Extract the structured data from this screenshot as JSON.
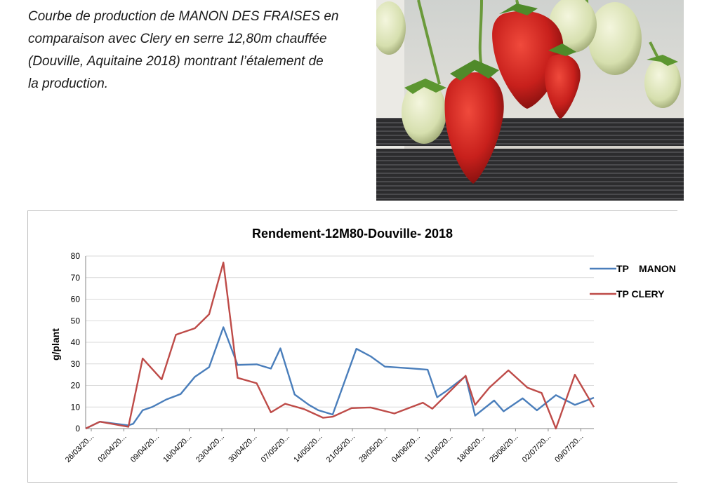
{
  "caption": {
    "line1": "Courbe de production de MANON DES FRAISES en",
    "line2": "comparaison avec Clery en serre 12,80m chauffée",
    "line3": "(Douville, Aquitaine 2018) montrant l’étalement de",
    "line4": "la production."
  },
  "photo": {
    "subject": "strawberries-hanging-from-gutter"
  },
  "colors": {
    "manon": "#4a7ebb",
    "clery": "#be4b48",
    "grid": "#d9d9d9",
    "axis": "#868686"
  },
  "chart_data": {
    "type": "line",
    "title": "Rendement-12M80-Douville- 2018",
    "ylabel": "g/plant",
    "xlabel": "",
    "ylim": [
      0,
      80
    ],
    "yticks": [
      0,
      10,
      20,
      30,
      40,
      50,
      60,
      70,
      80
    ],
    "grid": true,
    "legend_position": "right",
    "x_start": "26/03/2018",
    "x_end": "11/07/2018",
    "tick_labels": [
      "26/03/20...",
      "02/04/20...",
      "09/04/20...",
      "16/04/20...",
      "23/04/20...",
      "30/04/20...",
      "07/05/20...",
      "14/05/20...",
      "21/05/20...",
      "28/05/20...",
      "04/06/20...",
      "11/06/20...",
      "18/06/20...",
      "25/06/20...",
      "02/07/20...",
      "09/07/20..."
    ],
    "series": [
      {
        "name": "TP MANON",
        "legend_parts": [
          "TP",
          "MANON"
        ],
        "color": "#4a7ebb",
        "points": [
          [
            "26/03/2018",
            0
          ],
          [
            "29/03/2018",
            3.2
          ],
          [
            "04/04/2018",
            1.5
          ],
          [
            "05/04/2018",
            2.2
          ],
          [
            "07/04/2018",
            8.5
          ],
          [
            "09/04/2018",
            10
          ],
          [
            "12/04/2018",
            13.5
          ],
          [
            "15/04/2018",
            16
          ],
          [
            "18/04/2018",
            24
          ],
          [
            "21/04/2018",
            28.5
          ],
          [
            "24/04/2018",
            47
          ],
          [
            "27/04/2018",
            29.5
          ],
          [
            "01/05/2018",
            29.8
          ],
          [
            "04/05/2018",
            27.8
          ],
          [
            "06/05/2018",
            37.2
          ],
          [
            "09/05/2018",
            15.8
          ],
          [
            "12/05/2018",
            11
          ],
          [
            "14/05/2018",
            8.5
          ],
          [
            "17/05/2018",
            6.5
          ],
          [
            "22/05/2018",
            37
          ],
          [
            "25/05/2018",
            33.5
          ],
          [
            "28/05/2018",
            28.7
          ],
          [
            "02/06/2018",
            28
          ],
          [
            "06/06/2018",
            27.3
          ],
          [
            "08/06/2018",
            14.5
          ],
          [
            "10/06/2018",
            17.5
          ],
          [
            "14/06/2018",
            24.3
          ],
          [
            "16/06/2018",
            6
          ],
          [
            "20/06/2018",
            13
          ],
          [
            "22/06/2018",
            8
          ],
          [
            "26/06/2018",
            14
          ],
          [
            "29/06/2018",
            8.5
          ],
          [
            "03/07/2018",
            15.5
          ],
          [
            "07/07/2018",
            11
          ],
          [
            "11/07/2018",
            14.3
          ]
        ]
      },
      {
        "name": "TP CLERY",
        "legend_parts": [
          "TP CLERY"
        ],
        "color": "#be4b48",
        "points": [
          [
            "26/03/2018",
            0
          ],
          [
            "29/03/2018",
            3.2
          ],
          [
            "04/04/2018",
            0.8
          ],
          [
            "07/04/2018",
            32.5
          ],
          [
            "11/04/2018",
            22.8
          ],
          [
            "14/04/2018",
            43.5
          ],
          [
            "18/04/2018",
            46.5
          ],
          [
            "21/04/2018",
            53
          ],
          [
            "24/04/2018",
            77
          ],
          [
            "27/04/2018",
            23.5
          ],
          [
            "01/05/2018",
            21
          ],
          [
            "04/05/2018",
            7.5
          ],
          [
            "07/05/2018",
            11.5
          ],
          [
            "11/05/2018",
            9
          ],
          [
            "15/05/2018",
            5
          ],
          [
            "17/05/2018",
            5.5
          ],
          [
            "21/05/2018",
            9.5
          ],
          [
            "25/05/2018",
            9.8
          ],
          [
            "30/05/2018",
            7
          ],
          [
            "05/06/2018",
            12
          ],
          [
            "07/06/2018",
            9.2
          ],
          [
            "14/06/2018",
            24.5
          ],
          [
            "16/06/2018",
            11
          ],
          [
            "19/06/2018",
            19
          ],
          [
            "23/06/2018",
            27
          ],
          [
            "27/06/2018",
            19
          ],
          [
            "30/06/2018",
            16.5
          ],
          [
            "03/07/2018",
            0
          ],
          [
            "07/07/2018",
            25
          ],
          [
            "11/07/2018",
            10
          ]
        ]
      }
    ]
  }
}
